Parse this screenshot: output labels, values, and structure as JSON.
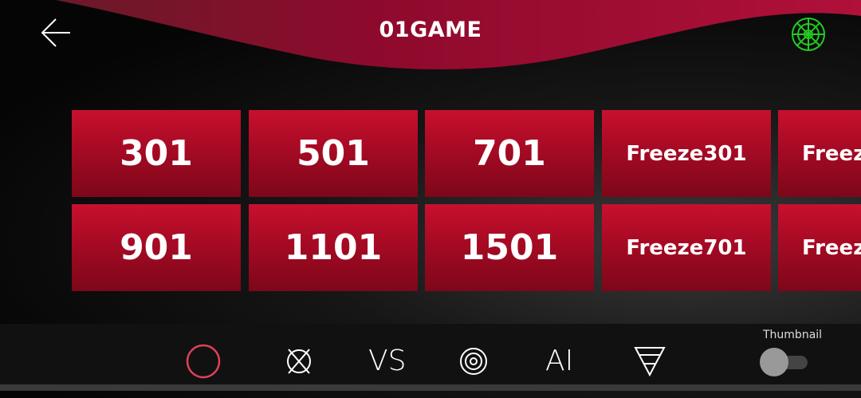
{
  "header": {
    "title": "01GAME",
    "back_icon": "arrow-left-icon",
    "board_icon": "dartboard-icon",
    "board_color": "#22cc22"
  },
  "games": [
    [
      "301",
      "501",
      "701",
      "Freeze301",
      "Freeze"
    ],
    [
      "901",
      "1101",
      "1501",
      "Freeze701",
      "Freeze"
    ]
  ],
  "bottom_bar": {
    "items": [
      {
        "icon": "zero-one-icon",
        "active": true
      },
      {
        "icon": "cricket-icon"
      },
      {
        "label": "VS",
        "icon": "versus-icon"
      },
      {
        "icon": "target-icon"
      },
      {
        "label": "AI",
        "icon": "ai-icon"
      },
      {
        "icon": "funnel-icon"
      }
    ],
    "accent": "#e0405a",
    "thumbnail_label": "Thumbnail",
    "thumbnail_on": false
  }
}
